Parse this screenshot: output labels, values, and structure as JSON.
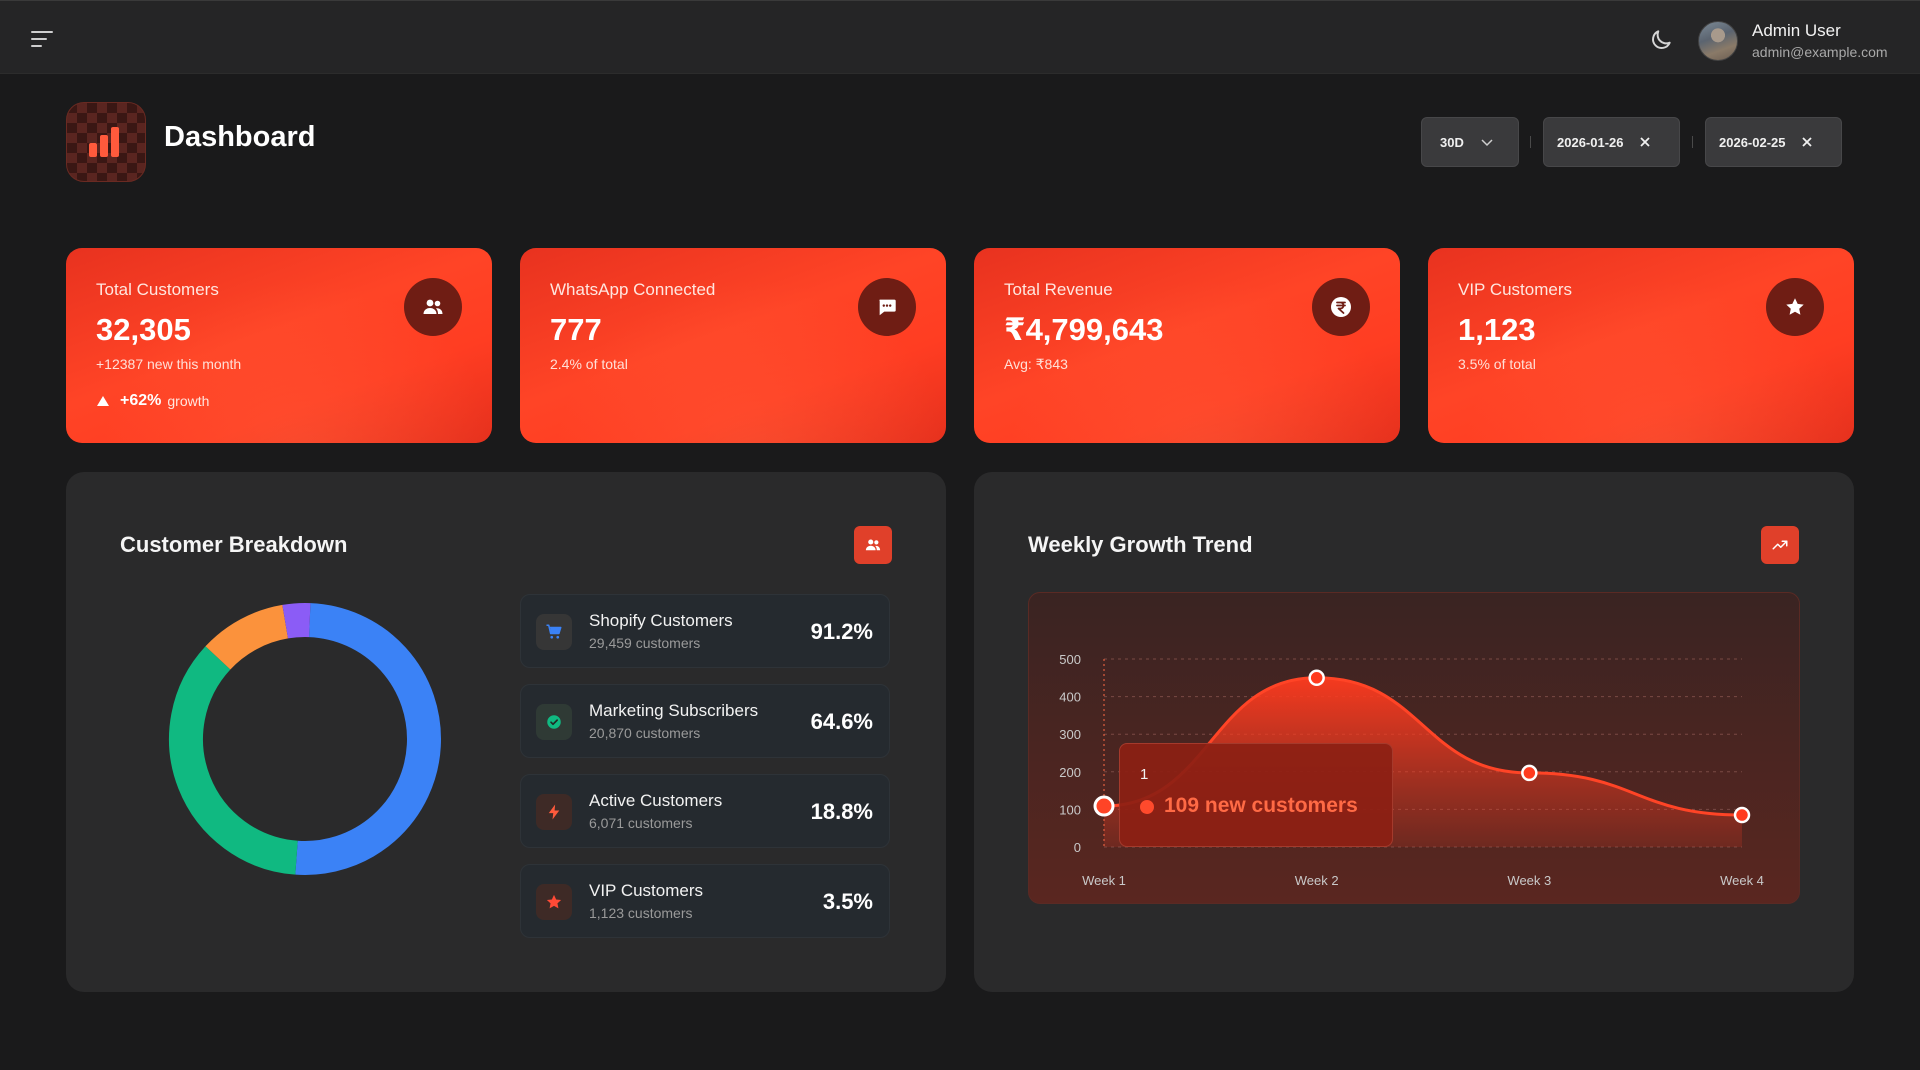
{
  "topbar": {
    "user_name": "Admin User",
    "user_email": "admin@example.com"
  },
  "header": {
    "title": "Dashboard",
    "range_label": "30D",
    "start_date": "2026-01-26",
    "end_date": "2026-02-25"
  },
  "kpis": [
    {
      "label": "Total Customers",
      "value": "32,305",
      "sub": "+12387 new this month",
      "growth_value": "+62%",
      "growth_text": "growth",
      "icon": "users-icon"
    },
    {
      "label": "WhatsApp Connected",
      "value": "777",
      "sub": "2.4% of total",
      "icon": "chat-icon"
    },
    {
      "label": "Total Revenue",
      "value": "₹4,799,643",
      "sub": "Avg: ₹843",
      "icon": "rupee-icon"
    },
    {
      "label": "VIP Customers",
      "value": "1,123",
      "sub": "3.5% of total",
      "icon": "star-icon"
    }
  ],
  "breakdown": {
    "title": "Customer Breakdown",
    "items": [
      {
        "name": "Shopify Customers",
        "count": "29,459 customers",
        "pct": "91.2%",
        "icon": "cart-icon"
      },
      {
        "name": "Marketing Subscribers",
        "count": "20,870 customers",
        "pct": "64.6%",
        "icon": "check-circle-icon"
      },
      {
        "name": "Active Customers",
        "count": "6,071 customers",
        "pct": "18.8%",
        "icon": "bolt-icon"
      },
      {
        "name": "VIP Customers",
        "count": "1,123 customers",
        "pct": "3.5%",
        "icon": "star-icon"
      }
    ]
  },
  "growth": {
    "title": "Weekly Growth Trend",
    "tooltip_index": "1",
    "tooltip_text": "109 new customers"
  },
  "chart_data": [
    {
      "type": "pie",
      "title": "Customer Breakdown",
      "style": "donut",
      "slices": [
        {
          "name": "Shopify",
          "value": 50.5,
          "color": "#3b82f6"
        },
        {
          "name": "Marketing",
          "value": 35.8,
          "color": "#10b981"
        },
        {
          "name": "Active",
          "value": 10.4,
          "color": "#fb923c"
        },
        {
          "name": "VIP",
          "value": 3.3,
          "color": "#8b5cf6"
        }
      ]
    },
    {
      "type": "area",
      "title": "Weekly Growth Trend",
      "categories": [
        "Week 1",
        "Week 2",
        "Week 3",
        "Week 4"
      ],
      "values": [
        109,
        450,
        197,
        85
      ],
      "ylim": [
        0,
        500
      ],
      "yticks": [
        "0",
        "100",
        "200",
        "300",
        "400",
        "500"
      ],
      "color": "#ff4426",
      "grid": true
    }
  ]
}
